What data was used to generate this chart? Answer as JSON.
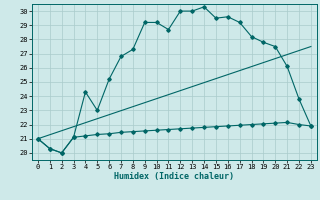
{
  "xlabel": "Humidex (Indice chaleur)",
  "background_color": "#cee9e9",
  "grid_color": "#aacccc",
  "line_color": "#006666",
  "xlim": [
    -0.5,
    23.5
  ],
  "ylim": [
    19.5,
    30.5
  ],
  "xticks": [
    0,
    1,
    2,
    3,
    4,
    5,
    6,
    7,
    8,
    9,
    10,
    11,
    12,
    13,
    14,
    15,
    16,
    17,
    18,
    19,
    20,
    21,
    22,
    23
  ],
  "yticks": [
    20,
    21,
    22,
    23,
    24,
    25,
    26,
    27,
    28,
    29,
    30
  ],
  "series1_x": [
    0,
    1,
    2,
    3,
    4,
    5,
    6,
    7,
    8,
    9,
    10,
    11,
    12,
    13,
    14,
    15,
    16,
    17,
    18,
    19,
    20,
    21,
    22,
    23
  ],
  "series1_y": [
    21.0,
    20.3,
    20.0,
    21.1,
    24.3,
    23.0,
    25.2,
    26.8,
    27.3,
    29.2,
    29.2,
    28.7,
    30.0,
    30.0,
    30.3,
    29.5,
    29.6,
    29.2,
    28.2,
    27.8,
    27.5,
    26.1,
    23.8,
    21.9
  ],
  "series2_x": [
    0,
    1,
    2,
    3,
    4,
    5,
    6,
    7,
    8,
    9,
    10,
    11,
    12,
    13,
    14,
    15,
    16,
    17,
    18,
    19,
    20,
    21,
    22,
    23
  ],
  "series2_y": [
    21.0,
    20.3,
    20.0,
    21.1,
    21.2,
    21.3,
    21.35,
    21.45,
    21.5,
    21.55,
    21.6,
    21.65,
    21.7,
    21.75,
    21.8,
    21.85,
    21.9,
    21.95,
    22.0,
    22.05,
    22.1,
    22.15,
    22.0,
    21.9
  ],
  "series3_x": [
    0,
    23
  ],
  "series3_y": [
    21.0,
    27.5
  ]
}
